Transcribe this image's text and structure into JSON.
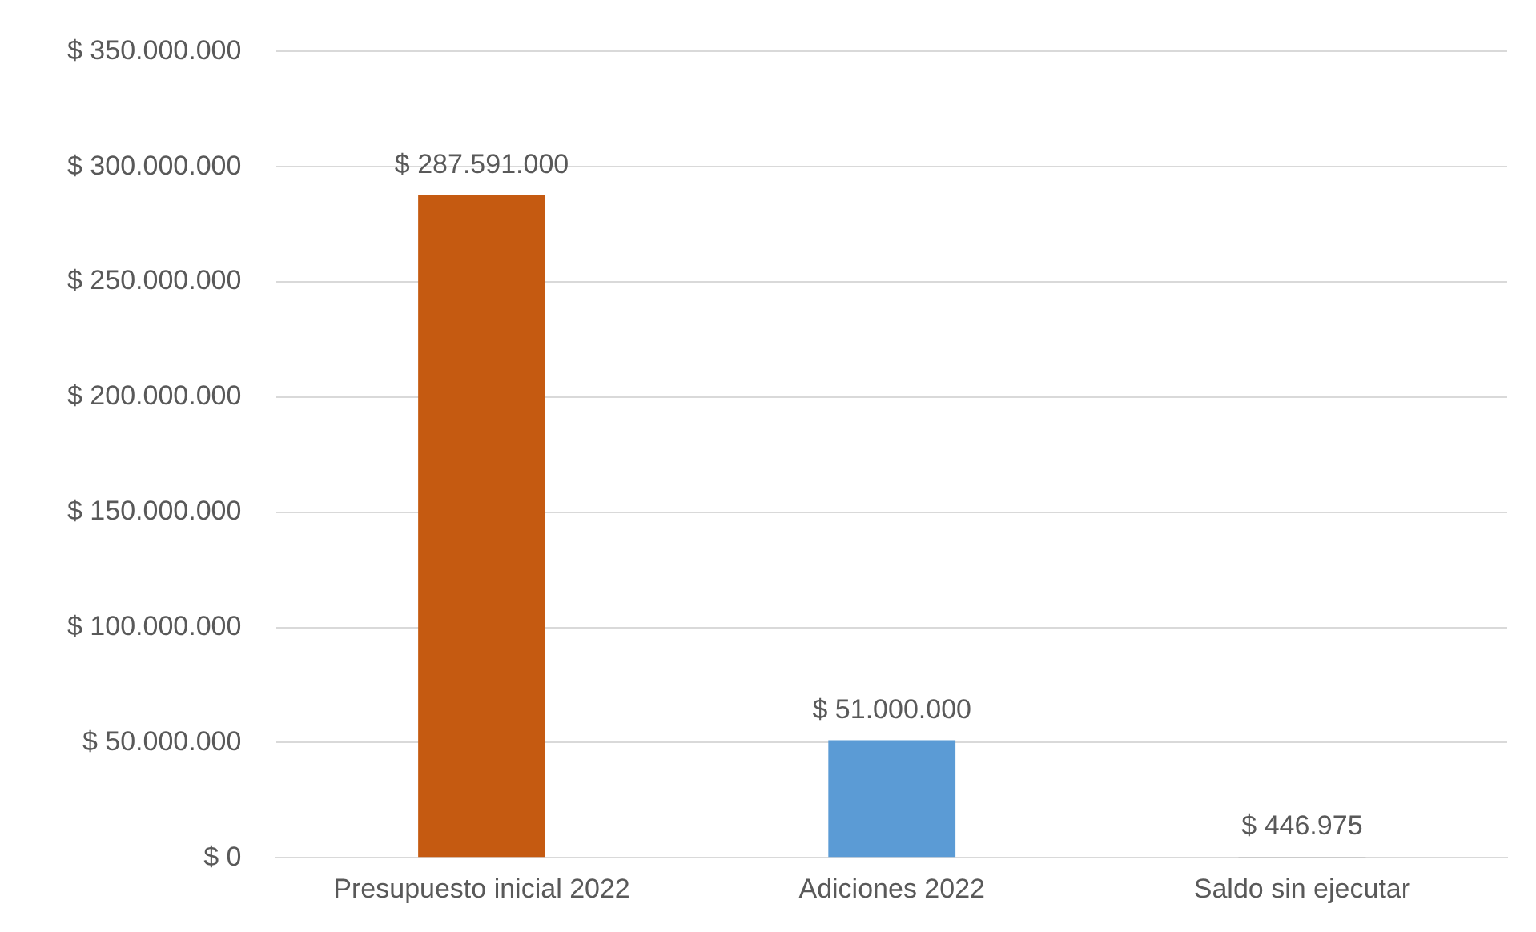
{
  "chart_data": {
    "type": "bar",
    "categories": [
      "Presupuesto inicial 2022",
      "Adiciones 2022",
      "Saldo sin ejecutar"
    ],
    "values": [
      287591000,
      51000000,
      446975
    ],
    "colors": [
      "#c55a11",
      "#5b9bd5",
      "#a5a5a5"
    ],
    "value_labels": [
      "$ 287.591.000",
      "$ 51.000.000",
      "$ 446.975"
    ],
    "ylim": [
      0,
      350000000
    ],
    "yticks": [
      {
        "value": 0,
        "label": "$ 0"
      },
      {
        "value": 50000000,
        "label": "$ 50.000.000"
      },
      {
        "value": 100000000,
        "label": "$ 100.000.000"
      },
      {
        "value": 150000000,
        "label": "$ 150.000.000"
      },
      {
        "value": 200000000,
        "label": "$ 200.000.000"
      },
      {
        "value": 250000000,
        "label": "$ 250.000.000"
      },
      {
        "value": 300000000,
        "label": "$ 300.000.000"
      },
      {
        "value": 350000000,
        "label": "$ 350.000.000"
      }
    ],
    "grid": "y"
  }
}
